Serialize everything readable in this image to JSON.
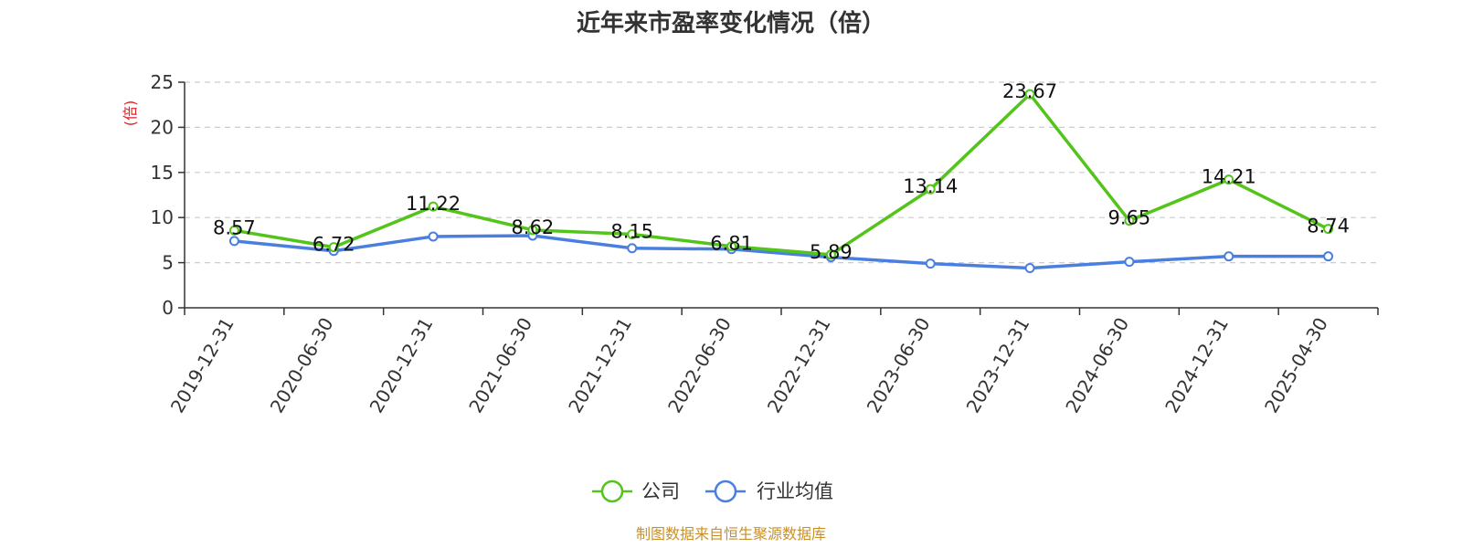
{
  "chart_data": {
    "type": "line",
    "title": "近年来市盈率变化情况（倍）",
    "ylabel": "(倍)",
    "xlabel": "",
    "categories": [
      "2019-12-31",
      "2020-06-30",
      "2020-12-31",
      "2021-06-30",
      "2021-12-31",
      "2022-06-30",
      "2022-12-31",
      "2023-06-30",
      "2023-12-31",
      "2024-06-30",
      "2024-12-31",
      "2025-04-30"
    ],
    "ylim": [
      0,
      25
    ],
    "yticks": [
      0,
      5,
      10,
      15,
      20,
      25
    ],
    "grid": true,
    "legend_position": "bottom",
    "series": [
      {
        "name": "公司",
        "color": "#52c41a",
        "values": [
          8.57,
          6.72,
          11.22,
          8.62,
          8.15,
          6.81,
          5.89,
          13.14,
          23.67,
          9.65,
          14.21,
          8.74
        ],
        "labels": [
          "8.57",
          "6.72",
          "11.22",
          "8.62",
          "8.15",
          "6.81",
          "5.89",
          "13.14",
          "23.67",
          "9.65",
          "14.21",
          "8.74"
        ]
      },
      {
        "name": "行业均值",
        "color": "#4a7fe0",
        "values": [
          7.4,
          6.3,
          7.9,
          8.0,
          6.6,
          6.5,
          5.6,
          4.9,
          4.4,
          5.1,
          5.7,
          5.7
        ]
      }
    ],
    "source": "制图数据来自恒生聚源数据库",
    "ylabel_color": "#e02020",
    "source_color": "#c8902a"
  }
}
